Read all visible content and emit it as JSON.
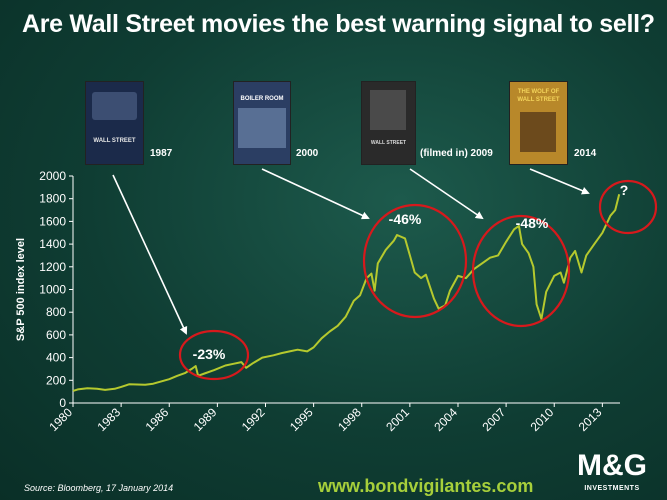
{
  "title": "Are Wall Street movies the best warning signal to sell?",
  "posters": [
    {
      "year_label": "1987",
      "poster_text": "WALL STREET",
      "bg": "#1b2a4a",
      "accent": "#e6e6e6"
    },
    {
      "year_label": "2000",
      "poster_text": "BOILER ROOM",
      "bg": "#2b3e63",
      "accent": "#ffffff"
    },
    {
      "year_label": "(filmed in) 2009",
      "poster_text": "WALL STREET",
      "bg": "#2a2a2a",
      "accent": "#d9d9d9"
    },
    {
      "year_label": "2014",
      "poster_text": "THE WOLF OF WALL STREET",
      "bg": "#b8882a",
      "accent": "#f3d35a"
    }
  ],
  "annotations": {
    "crash_1987": "-23%",
    "crash_2000": "-46%",
    "crash_2008": "-48%",
    "current": "?"
  },
  "footer": {
    "source": "Source: Bloomberg, 17 January 2014",
    "website": "www.bondvigilantes.com",
    "logo_mark": "M&G",
    "logo_sub": "INVESTMENTS"
  },
  "colors": {
    "line": "#b5c92e",
    "circle": "#d7191c",
    "arrow": "#ffffff",
    "website": "#a7cf3b"
  },
  "chart_data": {
    "type": "line",
    "title": "",
    "xlabel": "",
    "ylabel": "S&P 500 index level",
    "xlim": [
      1980,
      2014.1
    ],
    "ylim": [
      0,
      2000
    ],
    "x_ticks": [
      "1980",
      "1983",
      "1986",
      "1989",
      "1992",
      "1995",
      "1998",
      "2001",
      "2004",
      "2007",
      "2010",
      "2013"
    ],
    "y_ticks": [
      "0",
      "200",
      "400",
      "600",
      "800",
      "1000",
      "1200",
      "1400",
      "1600",
      "1800",
      "2000"
    ],
    "grid": false,
    "legend": "none",
    "series": [
      {
        "x": [
          1980.0,
          1980.3,
          1980.9,
          1981.5,
          1982.0,
          1982.6,
          1983.0,
          1983.5,
          1984.0,
          1984.5,
          1985.0,
          1985.5,
          1986.0,
          1986.5,
          1987.0,
          1987.4,
          1987.65,
          1987.8,
          1988.2,
          1988.8,
          1989.5,
          1990.0,
          1990.5,
          1990.8,
          1991.2,
          1991.8,
          1992.5,
          1993.0,
          1993.5,
          1994.0,
          1994.6,
          1995.0,
          1995.5,
          1996.0,
          1996.5,
          1997.0,
          1997.5,
          1997.9,
          1998.3,
          1998.6,
          1998.8,
          1999.0,
          1999.5,
          2000.0,
          2000.2,
          2000.7,
          2001.0,
          2001.3,
          2001.7,
          2002.0,
          2002.5,
          2002.8,
          2003.2,
          2003.5,
          2004.0,
          2004.5,
          2005.0,
          2005.5,
          2006.0,
          2006.5,
          2007.0,
          2007.5,
          2007.8,
          2008.0,
          2008.4,
          2008.7,
          2008.9,
          2009.2,
          2009.5,
          2010.0,
          2010.4,
          2010.6,
          2011.0,
          2011.3,
          2011.7,
          2012.0,
          2012.5,
          2013.0,
          2013.5,
          2013.8,
          2014.05
        ],
        "y": [
          107,
          120,
          130,
          125,
          115,
          125,
          142,
          165,
          163,
          160,
          170,
          190,
          210,
          240,
          265,
          300,
          325,
          240,
          260,
          290,
          330,
          345,
          360,
          310,
          350,
          400,
          420,
          440,
          455,
          470,
          455,
          490,
          570,
          630,
          680,
          760,
          900,
          950,
          1100,
          1140,
          990,
          1230,
          1350,
          1430,
          1480,
          1450,
          1300,
          1150,
          1100,
          1130,
          920,
          830,
          860,
          990,
          1120,
          1100,
          1180,
          1230,
          1280,
          1300,
          1420,
          1530,
          1560,
          1400,
          1320,
          1200,
          870,
          740,
          980,
          1120,
          1150,
          1060,
          1280,
          1340,
          1150,
          1300,
          1400,
          1500,
          1650,
          1700,
          1840
        ]
      }
    ]
  }
}
